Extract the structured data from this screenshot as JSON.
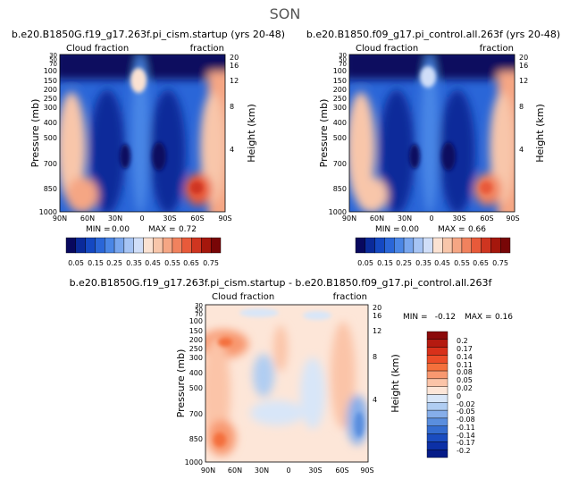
{
  "season": "SON",
  "chart_data": [
    {
      "type": "heatmap",
      "title": "b.e20.B1850G.f19_g17.263f.pi_cism.startup (yrs 20-48)",
      "left_label": "Cloud fraction",
      "right_label": "fraction",
      "xlabel": "",
      "ylabel": "Pressure (mb)",
      "y2label": "Height (km)",
      "x_ticks": [
        "90N",
        "60N",
        "30N",
        "0",
        "30S",
        "60S",
        "90S"
      ],
      "y_ticks": [
        "30",
        "50",
        "70",
        "100",
        "150",
        "200",
        "250",
        "300",
        "400",
        "500",
        "700",
        "850",
        "1000"
      ],
      "y2_ticks": [
        "20",
        "16",
        "12",
        "8",
        "4"
      ],
      "min_label": "MIN =",
      "min": "0.00",
      "max_label": "MAX =",
      "max": "0.72",
      "colorbar_labels": [
        "0.05",
        "0.15",
        "0.25",
        "0.35",
        "0.45",
        "0.55",
        "0.65",
        "0.75"
      ],
      "colorbar_colors": [
        "#08085e",
        "#0a2a9a",
        "#1448c2",
        "#2a66d8",
        "#4a86e6",
        "#78a6ee",
        "#a6c4f4",
        "#d0def8",
        "#fbe2d2",
        "#f8c6aa",
        "#f5a684",
        "#f1825e",
        "#e85a3a",
        "#cf3520",
        "#a5170c",
        "#780607"
      ]
    },
    {
      "type": "heatmap",
      "title": "b.e20.B1850.f09_g17.pi_control.all.263f (yrs 20-48)",
      "left_label": "Cloud fraction",
      "right_label": "fraction",
      "xlabel": "",
      "ylabel": "Pressure (mb)",
      "y2label": "Height (km)",
      "x_ticks": [
        "90N",
        "60N",
        "30N",
        "0",
        "30S",
        "60S",
        "90S"
      ],
      "y_ticks": [
        "30",
        "50",
        "70",
        "100",
        "150",
        "200",
        "250",
        "300",
        "400",
        "500",
        "700",
        "850",
        "1000"
      ],
      "y2_ticks": [
        "20",
        "16",
        "12",
        "8",
        "4"
      ],
      "min_label": "MIN =",
      "min": "0.00",
      "max_label": "MAX =",
      "max": "0.66",
      "colorbar_labels": [
        "0.05",
        "0.15",
        "0.25",
        "0.35",
        "0.45",
        "0.55",
        "0.65",
        "0.75"
      ],
      "colorbar_colors": [
        "#08085e",
        "#0a2a9a",
        "#1448c2",
        "#2a66d8",
        "#4a86e6",
        "#78a6ee",
        "#a6c4f4",
        "#d0def8",
        "#fbe2d2",
        "#f8c6aa",
        "#f5a684",
        "#f1825e",
        "#e85a3a",
        "#cf3520",
        "#a5170c",
        "#780607"
      ]
    },
    {
      "type": "heatmap",
      "title": "b.e20.B1850G.f19_g17.263f.pi_cism.startup - b.e20.B1850.f09_g17.pi_control.all.263f",
      "left_label": "Cloud fraction",
      "right_label": "fraction",
      "xlabel": "",
      "ylabel": "Pressure (mb)",
      "y2label": "Height (km)",
      "x_ticks": [
        "90N",
        "60N",
        "30N",
        "0",
        "30S",
        "60S",
        "90S"
      ],
      "y_ticks": [
        "30",
        "50",
        "70",
        "100",
        "150",
        "200",
        "250",
        "300",
        "400",
        "500",
        "700",
        "850",
        "1000"
      ],
      "y2_ticks": [
        "20",
        "16",
        "12",
        "8",
        "4"
      ],
      "min_label": "MIN =",
      "min": "-0.12",
      "max_label": "MAX =",
      "max": "0.16",
      "colorbar_labels": [
        "0.2",
        "0.17",
        "0.14",
        "0.11",
        "0.08",
        "0.05",
        "0.02",
        "0",
        "-0.02",
        "-0.05",
        "-0.08",
        "-0.11",
        "-0.14",
        "-0.17",
        "-0.2"
      ],
      "colorbar_colors": [
        "#8b0a0a",
        "#b51a10",
        "#d8301a",
        "#ec4c28",
        "#f4703c",
        "#f89870",
        "#fbc4a8",
        "#fde6d8",
        "#d8e6f8",
        "#b0cdf2",
        "#86aeea",
        "#5a8ede",
        "#346cd0",
        "#1a4cc0",
        "#0c30a6",
        "#061c88"
      ]
    }
  ]
}
